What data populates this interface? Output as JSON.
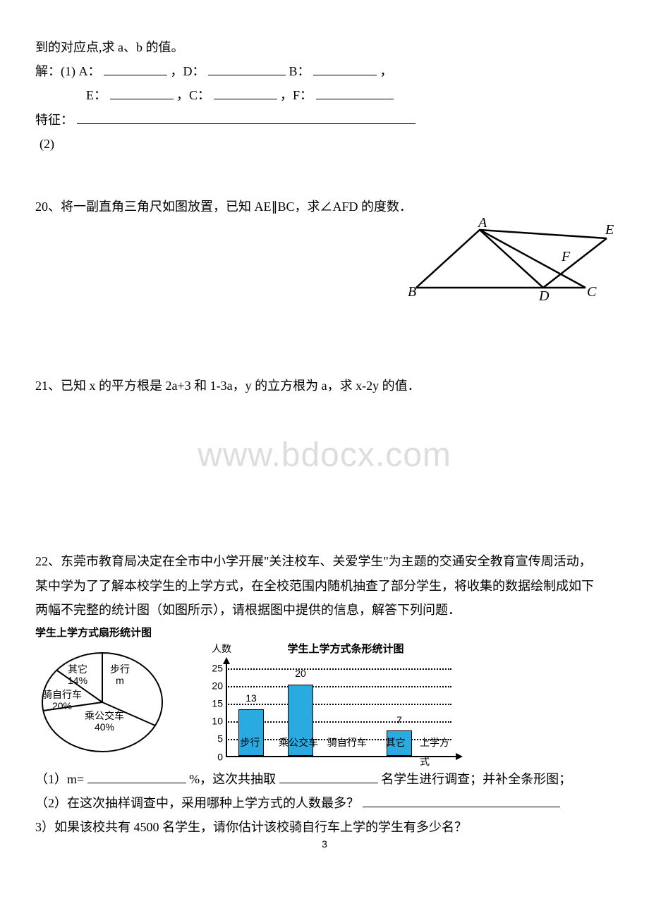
{
  "q19": {
    "line1": "到的对应点,求 a、b 的值。",
    "solve_label": "解：(1) A：",
    "D_label": "，D：",
    "B_label": "B：",
    "comma": "，",
    "line2_E": "E：",
    "line2_C": "，C：",
    "line2_F": "，F：",
    "feature_label": "特征：",
    "part2_label": "(2)"
  },
  "q20": {
    "text": "20、将一副直角三角尺如图放置，已知 AE∥BC，求∠AFD 的度数．",
    "figure": {
      "points": {
        "A": "A",
        "B": "B",
        "C": "C",
        "D": "D",
        "E": "E",
        "F": "F"
      },
      "stroke": "#000000",
      "stroke_width": 2.5
    }
  },
  "q21": {
    "text": "21、已知 x 的平方根是 2a+3 和 1-3a，y 的立方根为 a，求 x-2y 的值．"
  },
  "watermark": "www.bdocx.com",
  "q22": {
    "p1": "22、东莞市教育局决定在全市中小学开展\"关注校车、关爱学生\"为主题的交通安全教育宣传周活动，",
    "p2": "某中学为了了解本校学生的上学方式，在全校范围内随机抽查了部分学生，将收集的数据绘制成如下",
    "p3": "两幅不完整的统计图（如图所示），请根据图中提供的信息，解答下列问题．",
    "pie": {
      "title": "学生上学方式扇形统计图",
      "slices": [
        {
          "label_top": "其它",
          "label_bot": "14%",
          "pct": 14,
          "color": "#ffffff"
        },
        {
          "label_top": "步行",
          "label_bot": "m",
          "pct": 26,
          "color": "#ffffff"
        },
        {
          "label_top": "乘公交车",
          "label_bot": "40%",
          "pct": 40,
          "color": "#ffffff"
        },
        {
          "label_top": "骑自行车",
          "label_bot": "20%",
          "pct": 20,
          "color": "#ffffff"
        }
      ],
      "border": "#000000"
    },
    "bar": {
      "title": "学生上学方式条形统计图",
      "y_label": "人数",
      "x_label": "上学方式",
      "y_ticks": [
        0,
        5,
        10,
        15,
        20,
        25
      ],
      "y_max": 25,
      "categories": [
        "步行",
        "乘公交车",
        "骑自行车",
        "其它"
      ],
      "values": [
        13,
        20,
        null,
        7
      ],
      "bar_color": "#29abe2",
      "grid_color": "#000000",
      "axis_color": "#000000"
    },
    "sub1_a": "（1）m=",
    "sub1_b": "%，这次共抽取",
    "sub1_c": "名学生进行调查；并补全条形图；",
    "sub2_a": "（2）在这次抽样调查中，采用哪种上学方式的人数最多？",
    "sub3": "3）如果该校共有 4500 名学生，请你估计该校骑自行车上学的学生有多少名？"
  },
  "page_number": "3"
}
